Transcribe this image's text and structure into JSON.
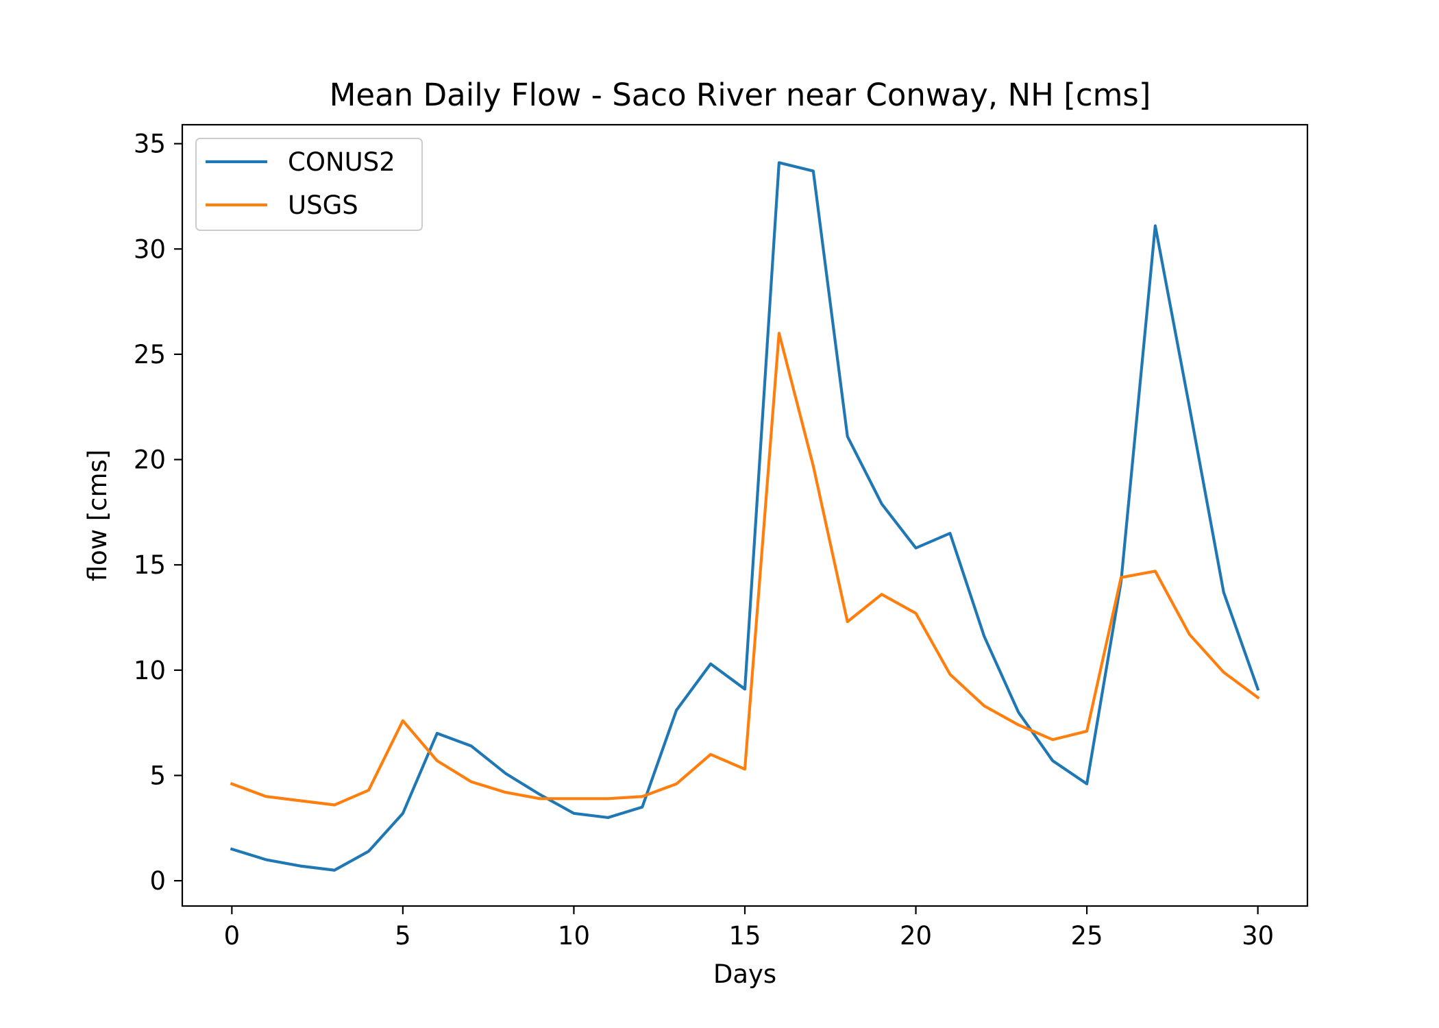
{
  "chart_data": {
    "type": "line",
    "title": "Mean Daily Flow - Saco River near Conway, NH [cms]",
    "xlabel": "Days",
    "ylabel": "flow [cms]",
    "xlim": [
      -1.45,
      31.45
    ],
    "ylim": [
      -1.2,
      35.9
    ],
    "x_ticks": [
      0,
      5,
      10,
      15,
      20,
      25,
      30
    ],
    "y_ticks": [
      0,
      5,
      10,
      15,
      20,
      25,
      30,
      35
    ],
    "x_tick_labels": [
      "0",
      "5",
      "10",
      "15",
      "20",
      "25",
      "30"
    ],
    "y_tick_labels": [
      "0",
      "5",
      "10",
      "15",
      "20",
      "25",
      "30",
      "35"
    ],
    "grid": false,
    "legend_position": "upper-left",
    "x": [
      0,
      1,
      2,
      3,
      4,
      5,
      6,
      7,
      8,
      9,
      10,
      11,
      12,
      13,
      14,
      15,
      16,
      17,
      18,
      19,
      20,
      21,
      22,
      23,
      24,
      25,
      26,
      27,
      28,
      29,
      30
    ],
    "series": [
      {
        "name": "CONUS2",
        "color": "#1f77b4",
        "values": [
          1.5,
          1.0,
          0.7,
          0.5,
          1.4,
          3.2,
          7.0,
          6.4,
          5.1,
          4.1,
          3.2,
          3.0,
          3.5,
          8.1,
          10.3,
          9.1,
          34.1,
          33.7,
          21.1,
          17.9,
          15.8,
          16.5,
          11.6,
          8.0,
          5.7,
          4.6,
          14.2,
          31.1,
          22.5,
          13.7,
          9.1
        ]
      },
      {
        "name": "USGS",
        "color": "#ff7f0e",
        "values": [
          4.6,
          4.0,
          3.8,
          3.6,
          4.3,
          7.6,
          5.7,
          4.7,
          4.2,
          3.9,
          3.9,
          3.9,
          4.0,
          4.6,
          6.0,
          5.3,
          26.0,
          19.7,
          12.3,
          13.6,
          12.7,
          9.8,
          8.3,
          7.4,
          6.7,
          7.1,
          14.4,
          14.7,
          11.7,
          9.9,
          8.7
        ]
      }
    ]
  }
}
